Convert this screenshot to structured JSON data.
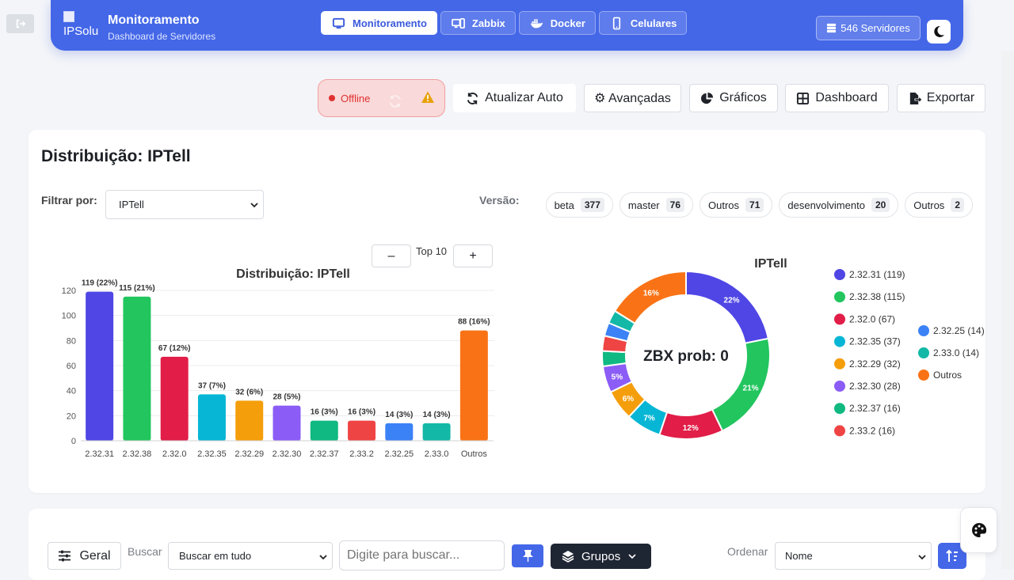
{
  "header": {
    "logo_alt": "IPSolu",
    "title": "Monitoramento",
    "subtitle": "Dashboard de Servidores",
    "tabs": [
      {
        "label": "Monitoramento",
        "icon": "monitor-icon",
        "active": true
      },
      {
        "label": "Zabbix",
        "icon": "server-desktop-icon",
        "active": false
      },
      {
        "label": "Docker",
        "icon": "docker-icon",
        "active": false
      },
      {
        "label": "Celulares",
        "icon": "mobile-icon",
        "active": false
      }
    ],
    "servers_count": "546 Servidores",
    "accent": "#4467e8"
  },
  "status": {
    "label": "Offline",
    "color": "#e03131"
  },
  "toolbar": {
    "auto_refresh": "Atualizar Auto",
    "advanced": "⚙ Avançadas",
    "charts": "Gráficos",
    "dashboard": "Dashboard",
    "export": "Exportar"
  },
  "distribution": {
    "title": "Distribuição: IPTell",
    "filter_label": "Filtrar por:",
    "filter_value": "IPTell",
    "version_label": "Versão:",
    "versions": [
      {
        "name": "beta",
        "count": "377"
      },
      {
        "name": "master",
        "count": "76"
      },
      {
        "name": "Outros",
        "count": "71"
      },
      {
        "name": "desenvolvimento",
        "count": "20"
      },
      {
        "name": "Outros",
        "count": "2"
      }
    ],
    "top_n_label": "Top 10",
    "minus": "–",
    "plus": "+"
  },
  "chart_data": [
    {
      "type": "bar",
      "title": "Distribuição: IPTell",
      "categories": [
        "2.32.31",
        "2.32.38",
        "2.32.0",
        "2.32.35",
        "2.32.29",
        "2.32.30",
        "2.32.37",
        "2.33.2",
        "2.32.25",
        "2.33.0",
        "Outros"
      ],
      "values": [
        119,
        115,
        67,
        37,
        32,
        28,
        16,
        16,
        14,
        14,
        88
      ],
      "data_labels": [
        "119 (22%)",
        "115 (21%)",
        "67 (12%)",
        "37 (7%)",
        "32 (6%)",
        "28 (5%)",
        "16 (3%)",
        "16 (3%)",
        "14 (3%)",
        "14 (3%)",
        "88 (16%)"
      ],
      "colors": [
        "#4f46e5",
        "#22c55e",
        "#e11d48",
        "#06b6d4",
        "#f59e0b",
        "#8b5cf6",
        "#10b981",
        "#ef4444",
        "#3b82f6",
        "#14b8a6",
        "#f97316"
      ],
      "ylim": [
        0,
        120
      ],
      "yticks": [
        0,
        20,
        40,
        60,
        80,
        100,
        120
      ],
      "grid": true
    },
    {
      "type": "pie",
      "title": "IPTell",
      "center_text": "ZBX prob: 0",
      "labels": [
        "2.32.31",
        "2.32.38",
        "2.32.0",
        "2.32.35",
        "2.32.29",
        "2.32.30",
        "2.32.37",
        "2.33.2",
        "2.32.25",
        "2.33.0",
        "Outros"
      ],
      "values": [
        119,
        115,
        67,
        37,
        32,
        28,
        16,
        16,
        14,
        14,
        88
      ],
      "legend": [
        "2.32.31 (119)",
        "2.32.38 (115)",
        "2.32.0 (67)",
        "2.32.35 (37)",
        "2.32.29 (32)",
        "2.32.30 (28)",
        "2.32.37 (16)",
        "2.33.2 (16)",
        "2.32.25 (14)",
        "2.33.0 (14)",
        "Outros"
      ],
      "slice_labels": [
        "22%",
        "21%",
        "12%",
        "7%",
        "6%",
        "5%",
        "",
        "",
        "",
        "",
        "16%"
      ],
      "colors": [
        "#4f46e5",
        "#22c55e",
        "#e11d48",
        "#06b6d4",
        "#f59e0b",
        "#8b5cf6",
        "#10b981",
        "#ef4444",
        "#3b82f6",
        "#14b8a6",
        "#f97316"
      ],
      "legend_placement": "right"
    }
  ],
  "filters": {
    "group_button": "Geral",
    "search_label": "Buscar",
    "search_scope": "Buscar em tudo",
    "search_placeholder": "Digite para buscar...",
    "groups_button": "Grupos",
    "order_label": "Ordenar",
    "order_value": "Nome"
  }
}
